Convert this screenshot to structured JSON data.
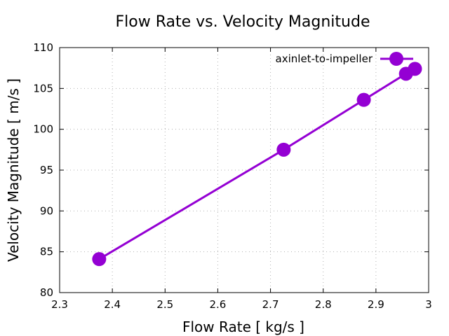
{
  "chart_data": {
    "type": "line",
    "title": "Flow Rate vs. Velocity Magnitude",
    "xlabel": "Flow Rate [ kg/s ]",
    "ylabel": "Velocity Magnitude [ m/s ]",
    "xlim": [
      2.3,
      3.0
    ],
    "ylim": [
      80,
      110
    ],
    "xticks": [
      2.3,
      2.4,
      2.5,
      2.6,
      2.7,
      2.8,
      2.9,
      3.0
    ],
    "xtick_labels": [
      "2.3",
      "2.4",
      "2.5",
      "2.6",
      "2.7",
      "2.8",
      "2.9",
      "3"
    ],
    "yticks": [
      80,
      85,
      90,
      95,
      100,
      105,
      110
    ],
    "ytick_labels": [
      "80",
      "85",
      "90",
      "95",
      "100",
      "105",
      "110"
    ],
    "grid": true,
    "legend_position": "top-right",
    "series": [
      {
        "name": "axinlet-to-impeller",
        "color": "#9400d3",
        "marker": "circle",
        "points": [
          {
            "x": 2.375,
            "y": 84.1
          },
          {
            "x": 2.725,
            "y": 97.5
          },
          {
            "x": 2.877,
            "y": 103.6
          },
          {
            "x": 2.957,
            "y": 106.8
          },
          {
            "x": 2.974,
            "y": 107.4
          }
        ]
      }
    ]
  }
}
